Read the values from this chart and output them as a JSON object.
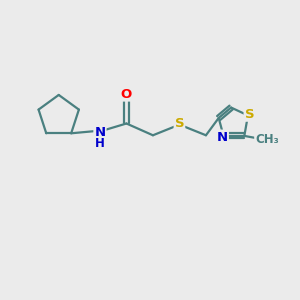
{
  "background_color": "#ebebeb",
  "bond_color": "#4a8080",
  "atom_colors": {
    "O": "#ff0000",
    "N": "#0000cc",
    "S": "#ccaa00"
  },
  "figsize": [
    3.0,
    3.0
  ],
  "dpi": 100,
  "xlim": [
    0,
    10
  ],
  "ylim": [
    0,
    10
  ]
}
